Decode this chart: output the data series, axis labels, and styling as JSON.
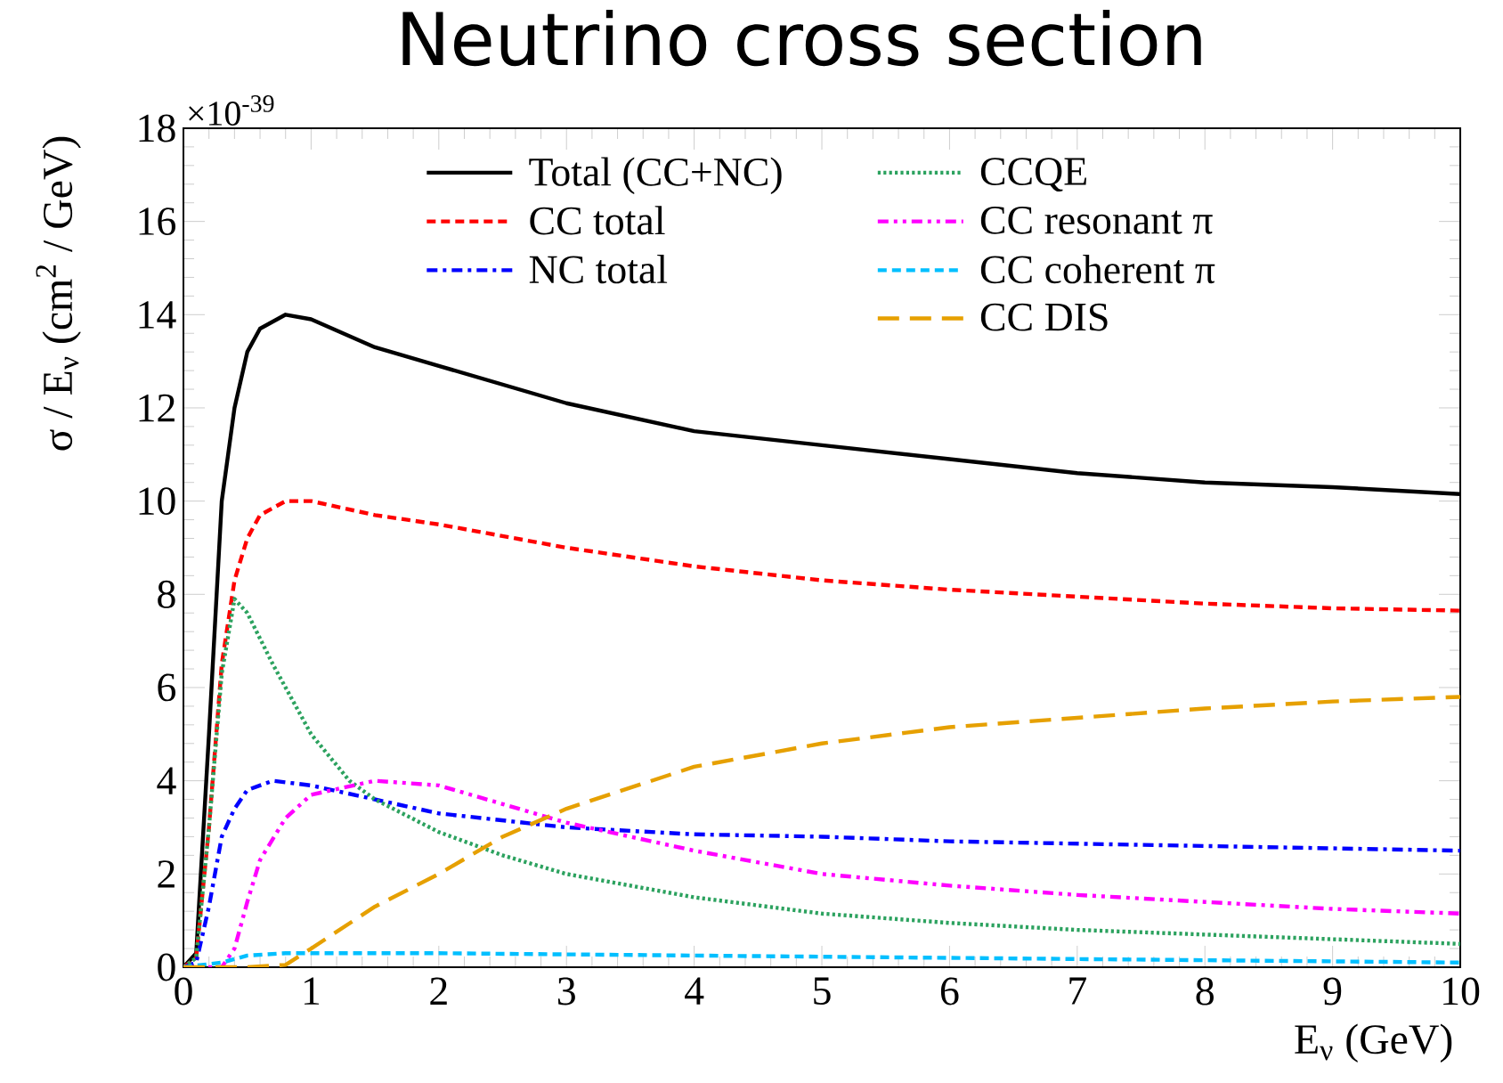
{
  "chart_data": {
    "type": "line",
    "title": "Neutrino cross section",
    "xlabel": "E$_{ν}$ (GeV)",
    "ylabel": "σ / E$_{ν}$ (cm$^{2}$ / GeV)",
    "annotations": [
      "×10$^{-39}$"
    ],
    "xlim": [
      0,
      10
    ],
    "ylim": [
      0,
      18
    ],
    "xticks": [
      0,
      1,
      2,
      3,
      4,
      5,
      6,
      7,
      8,
      9,
      10
    ],
    "yticks": [
      0,
      2,
      4,
      6,
      8,
      10,
      12,
      14,
      16,
      18
    ],
    "legend": "top",
    "series": [
      {
        "name": "Total (CC+NC)",
        "color": "#000000",
        "line_style": "solid",
        "x": [
          0,
          0.1,
          0.2,
          0.3,
          0.4,
          0.5,
          0.6,
          0.8,
          1,
          1.5,
          2,
          3,
          4,
          5,
          6,
          7,
          8,
          9,
          10
        ],
        "values": [
          0,
          0.3,
          5,
          10,
          12,
          13.2,
          13.7,
          14,
          13.9,
          13.3,
          12.9,
          12.1,
          11.5,
          11.2,
          10.9,
          10.6,
          10.4,
          10.3,
          10.15
        ]
      },
      {
        "name": "CC total",
        "color": "#ff0000",
        "line_style": "dashed",
        "x": [
          0,
          0.1,
          0.2,
          0.3,
          0.4,
          0.5,
          0.6,
          0.8,
          1,
          1.5,
          2,
          3,
          4,
          5,
          6,
          7,
          8,
          9,
          10
        ],
        "values": [
          0,
          0.2,
          3,
          6.5,
          8.3,
          9.2,
          9.7,
          10,
          10,
          9.7,
          9.5,
          9,
          8.6,
          8.3,
          8.1,
          7.95,
          7.8,
          7.7,
          7.65
        ]
      },
      {
        "name": "NC total",
        "color": "#0000ff",
        "line_style": "dashdotted",
        "x": [
          0,
          0.1,
          0.2,
          0.3,
          0.4,
          0.5,
          0.7,
          1,
          1.5,
          2,
          3,
          4,
          5,
          6,
          7,
          8,
          9,
          10
        ],
        "values": [
          0,
          0.1,
          1.3,
          2.8,
          3.4,
          3.8,
          4,
          3.9,
          3.6,
          3.3,
          3,
          2.85,
          2.8,
          2.7,
          2.65,
          2.6,
          2.55,
          2.5
        ]
      },
      {
        "name": "CCQE",
        "color": "#2ca25f",
        "line_style": "dotted",
        "x": [
          0,
          0.1,
          0.2,
          0.3,
          0.4,
          0.5,
          0.7,
          1,
          1.3,
          1.5,
          2,
          2.5,
          3,
          4,
          5,
          6,
          7,
          8,
          9,
          10
        ],
        "values": [
          0,
          0.2,
          3,
          6.3,
          7.9,
          7.6,
          6.5,
          5,
          4,
          3.6,
          2.9,
          2.4,
          2,
          1.5,
          1.15,
          0.95,
          0.8,
          0.7,
          0.6,
          0.5
        ]
      },
      {
        "name": "CC resonant π",
        "color": "#ff00ff",
        "line_style": "dashdotdotted",
        "x": [
          0,
          0.3,
          0.4,
          0.5,
          0.6,
          0.8,
          1,
          1.5,
          2,
          2.5,
          3,
          4,
          5,
          6,
          7,
          8,
          9,
          10
        ],
        "values": [
          0,
          0,
          0.4,
          1.4,
          2.3,
          3.2,
          3.7,
          4,
          3.9,
          3.5,
          3.1,
          2.5,
          2,
          1.75,
          1.55,
          1.4,
          1.25,
          1.15
        ]
      },
      {
        "name": "CC coherent π",
        "color": "#00bfff",
        "line_style": "dashed",
        "x": [
          0,
          0.3,
          0.5,
          0.8,
          1,
          2,
          4,
          6,
          8,
          10
        ],
        "values": [
          0,
          0.1,
          0.25,
          0.3,
          0.3,
          0.3,
          0.25,
          0.2,
          0.15,
          0.1
        ]
      },
      {
        "name": "CC DIS",
        "color": "#e6a000",
        "line_style": "loosely dashed",
        "x": [
          0,
          0.5,
          0.8,
          1,
          1.5,
          2,
          2.5,
          3,
          4,
          5,
          6,
          7,
          8,
          9,
          10
        ],
        "values": [
          0,
          0,
          0.05,
          0.4,
          1.3,
          2,
          2.8,
          3.4,
          4.3,
          4.8,
          5.15,
          5.35,
          5.55,
          5.7,
          5.8
        ]
      }
    ]
  }
}
